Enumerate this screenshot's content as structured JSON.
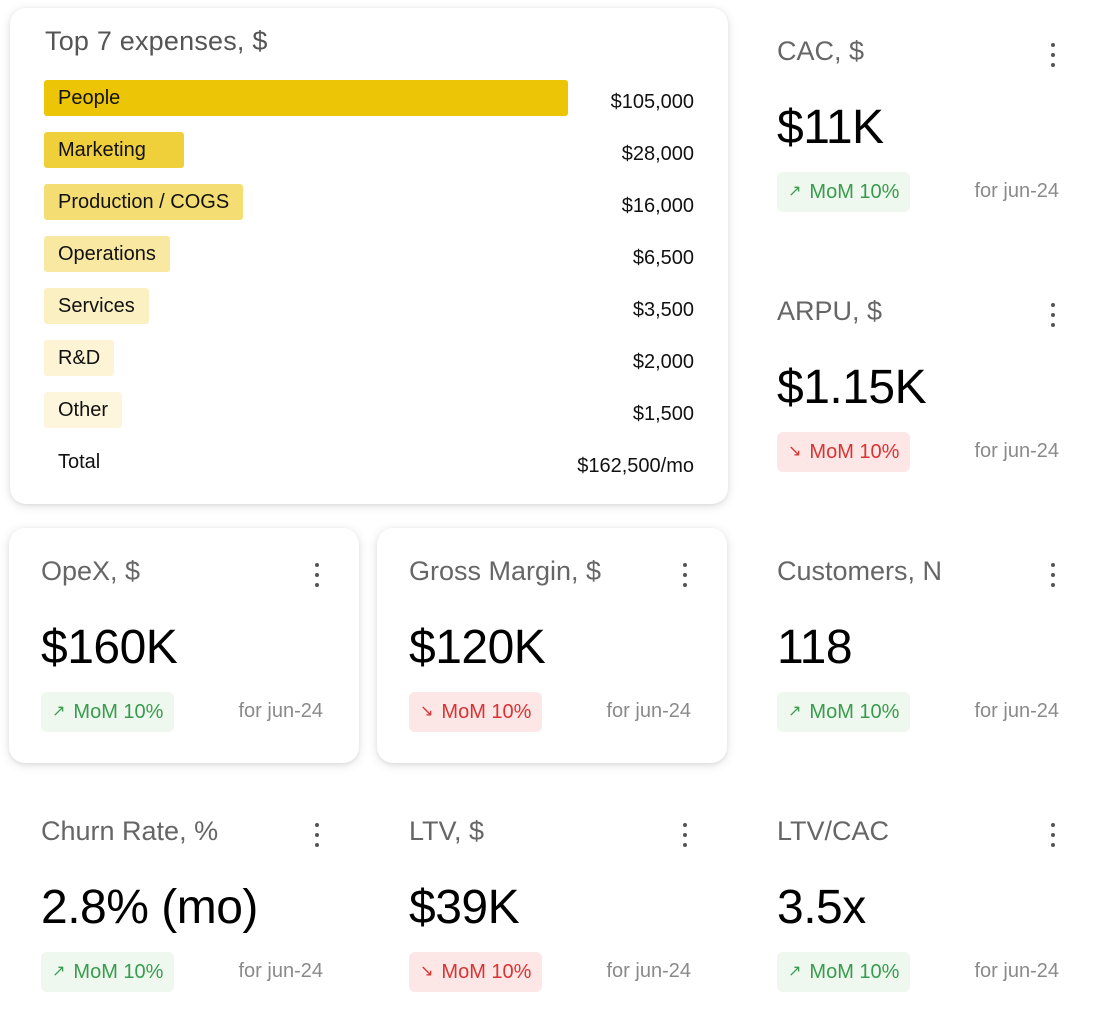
{
  "expenses": {
    "title": "Top 7 expenses, $",
    "items": [
      {
        "label": "People",
        "value": "$105,000",
        "amount": 105000,
        "color": "#ecc606"
      },
      {
        "label": "Marketing",
        "value": "$28,000",
        "amount": 28000,
        "color": "#f0d03a"
      },
      {
        "label": "Production / COGS",
        "value": "$16,000",
        "amount": 16000,
        "color": "#f4dd72"
      },
      {
        "label": "Operations",
        "value": "$6,500",
        "amount": 6500,
        "color": "#f8e8a2"
      },
      {
        "label": "Services",
        "value": "$3,500",
        "amount": 3500,
        "color": "#fbf0c2"
      },
      {
        "label": "R&D",
        "value": "$2,000",
        "amount": 2000,
        "color": "#fcf4d4"
      },
      {
        "label": "Other",
        "value": "$1,500",
        "amount": 1500,
        "color": "#fdf6dc"
      }
    ],
    "total_label": "Total",
    "total_value": "$162,500/mo"
  },
  "metrics": {
    "cac": {
      "title": "CAC, $",
      "value": "$11K",
      "trend": "up",
      "badge": "MoM 10%",
      "period": "for jun-24"
    },
    "arpu": {
      "title": "ARPU, $",
      "value": "$1.15K",
      "trend": "down",
      "badge": "MoM 10%",
      "period": "for jun-24"
    },
    "opex": {
      "title": "OpeX, $",
      "value": "$160K",
      "trend": "up",
      "badge": "MoM 10%",
      "period": "for jun-24"
    },
    "gross_margin": {
      "title": "Gross Margin, $",
      "value": "$120K",
      "trend": "down",
      "badge": "MoM 10%",
      "period": "for jun-24"
    },
    "customers": {
      "title": "Customers, N",
      "value": "118",
      "trend": "up",
      "badge": "MoM 10%",
      "period": "for jun-24"
    },
    "churn": {
      "title": "Churn Rate, %",
      "value": "2.8% (mo)",
      "trend": "up",
      "badge": "MoM 10%",
      "period": "for jun-24"
    },
    "ltv": {
      "title": "LTV, $",
      "value": "$39K",
      "trend": "down",
      "badge": "MoM 10%",
      "period": "for jun-24"
    },
    "ltv_cac": {
      "title": "LTV/CAC",
      "value": "3.5x",
      "trend": "up",
      "badge": "MoM 10%",
      "period": "for jun-24"
    }
  },
  "icons": {
    "up": "arrow-up-right-icon",
    "down": "arrow-down-right-icon",
    "menu": "kebab-menu-icon"
  },
  "colors": {
    "up_text": "#3a9b4f",
    "up_bg": "#eef8ef",
    "down_text": "#d83434",
    "down_bg": "#fde6e6"
  }
}
